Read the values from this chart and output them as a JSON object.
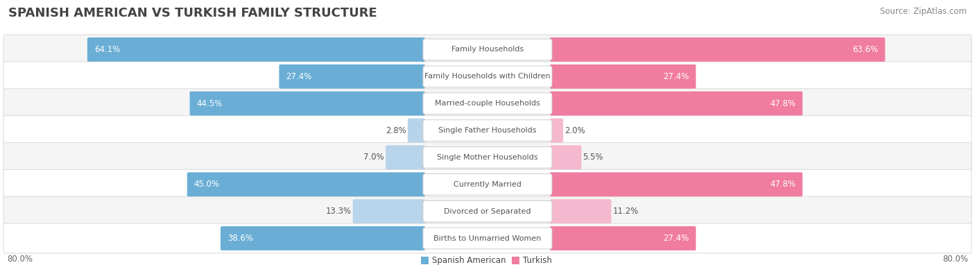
{
  "title": "SPANISH AMERICAN VS TURKISH FAMILY STRUCTURE",
  "source": "Source: ZipAtlas.com",
  "categories": [
    "Family Households",
    "Family Households with Children",
    "Married-couple Households",
    "Single Father Households",
    "Single Mother Households",
    "Currently Married",
    "Divorced or Separated",
    "Births to Unmarried Women"
  ],
  "spanish_american": [
    64.1,
    27.4,
    44.5,
    2.8,
    7.0,
    45.0,
    13.3,
    38.6
  ],
  "turkish": [
    63.6,
    27.4,
    47.8,
    2.0,
    5.5,
    47.8,
    11.2,
    27.4
  ],
  "color_spanish_large": "#6aaed6",
  "color_turkish_large": "#f07ca0",
  "color_spanish_small": "#b8d4ea",
  "color_turkish_small": "#f5b8ce",
  "axis_max": 80.0,
  "axis_label_left": "80.0%",
  "axis_label_right": "80.0%",
  "legend_spanish": "Spanish American",
  "legend_turkish": "Turkish",
  "bg_color": "#ffffff",
  "row_bg_even": "#f5f5f5",
  "row_bg_odd": "#ffffff",
  "row_border_color": "#dddddd",
  "title_color": "#444444",
  "source_color": "#888888",
  "label_text_color": "#555555",
  "value_text_white": "#ffffff",
  "value_text_dark": "#555555",
  "center_label_bg": "#ffffff",
  "center_label_border": "#cccccc"
}
